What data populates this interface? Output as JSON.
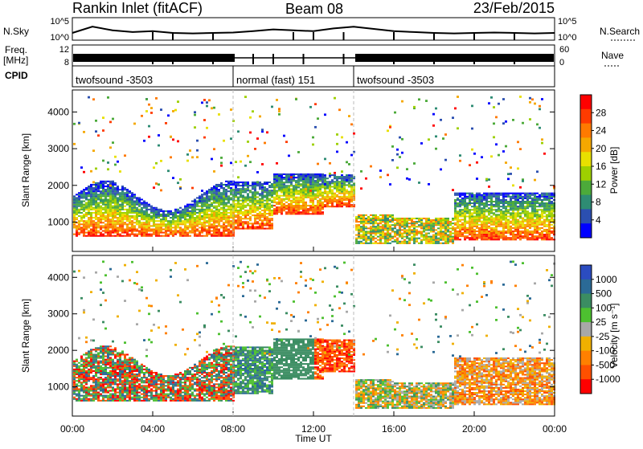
{
  "header": {
    "title": "Rankin Inlet (fitACF)",
    "beam": "Beam 08",
    "date": "23/Feb/2015"
  },
  "top_panels": {
    "nsky_label": "N.Sky",
    "nsky_ticks": [
      "10^5",
      "10^0"
    ],
    "nsearch_label": "N.Search",
    "nsearch_ticks": [
      "10^5",
      "10^0"
    ],
    "freq_label_1": "Freq.",
    "freq_label_2": "[MHz]",
    "freq_ticks": [
      "12",
      "8"
    ],
    "nave_label": "Nave",
    "nave_ticks": [
      "60",
      "0"
    ],
    "cpid_label": "CPID",
    "cpid_segments": [
      {
        "label": "twofsound -3503",
        "start_hour": 0,
        "end_hour": 8
      },
      {
        "label": "normal (fast) 151",
        "start_hour": 8,
        "end_hour": 14
      },
      {
        "label": "twofsound -3503",
        "start_hour": 14,
        "end_hour": 24
      }
    ]
  },
  "power_panel": {
    "ylabel": "Slant Range [km]",
    "colorbar_label": "Power [dB]",
    "colorbar_ticks": [
      "28",
      "24",
      "20",
      "16",
      "12",
      "8",
      "4"
    ],
    "colorbar_colors": [
      "#ff0000",
      "#ff3b00",
      "#ff7a00",
      "#f5a800",
      "#e8e000",
      "#9ed000",
      "#4caa3a",
      "#2e8c73",
      "#2b4fb0",
      "#0000ff"
    ]
  },
  "velocity_panel": {
    "ylabel": "Slant Range [km]",
    "colorbar_label": "Velocity [m s⁻¹]",
    "colorbar_ticks": [
      "1000",
      "500",
      "100",
      "25",
      "-25",
      "-100",
      "-500",
      "-1000"
    ],
    "colorbar_colors": [
      "#2b4cc0",
      "#2b6a96",
      "#3b8d62",
      "#4dc030",
      "#a8a8a8",
      "#f0b000",
      "#ff8000",
      "#ff5000",
      "#ff0000"
    ]
  },
  "chart_data": [
    {
      "type": "line",
      "title": "N.Sky / N.Search",
      "x_unit": "hour UT",
      "xlim": [
        0,
        24
      ],
      "ylim_log10": [
        0,
        5
      ],
      "series": [
        {
          "name": "N.Sky",
          "x": [
            0,
            1,
            2,
            3,
            4,
            5,
            6,
            7,
            8,
            9,
            10,
            11,
            12,
            13,
            14,
            15,
            16,
            17,
            18,
            19,
            20,
            21,
            22,
            23,
            24
          ],
          "y_log10": [
            1.6,
            3.0,
            2.2,
            1.8,
            2.0,
            1.6,
            1.5,
            1.6,
            1.7,
            2.0,
            2.4,
            2.2,
            2.0,
            2.6,
            3.0,
            2.5,
            2.0,
            1.8,
            1.6,
            1.5,
            1.6,
            1.7,
            1.6,
            1.5,
            1.6
          ]
        }
      ]
    },
    {
      "type": "heatmap",
      "title": "Power",
      "xlabel": "Time UT",
      "ylabel": "Slant Range [km]",
      "x_ticks": [
        "00:00",
        "04:00",
        "08:00",
        "12:00",
        "16:00",
        "20:00",
        "00:00"
      ],
      "y_ticks": [
        1000,
        2000,
        3000,
        4000
      ],
      "xlim_hours": [
        0,
        24
      ],
      "ylim_km": [
        200,
        4600
      ],
      "color_scale": {
        "label": "Power [dB]",
        "range": [
          0,
          30
        ]
      }
    },
    {
      "type": "heatmap",
      "title": "Velocity",
      "xlabel": "Time UT",
      "ylabel": "Slant Range [km]",
      "x_ticks": [
        "00:00",
        "04:00",
        "08:00",
        "12:00",
        "16:00",
        "20:00",
        "00:00"
      ],
      "y_ticks": [
        1000,
        2000,
        3000,
        4000
      ],
      "xlim_hours": [
        0,
        24
      ],
      "ylim_km": [
        200,
        4600
      ],
      "color_scale": {
        "label": "Velocity [m s⁻¹]",
        "range": [
          -1000,
          1000
        ]
      }
    }
  ],
  "x_axis": {
    "label": "Time UT",
    "ticks": [
      "00:00",
      "04:00",
      "08:00",
      "12:00",
      "16:00",
      "20:00",
      "00:00"
    ]
  }
}
